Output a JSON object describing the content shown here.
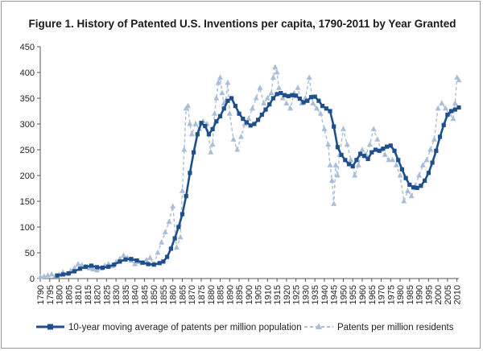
{
  "chart_data": {
    "type": "line",
    "title": "Figure 1. History of Patented U.S. Inventions per capita, 1790-2011 by Year Granted",
    "xlabel": "",
    "ylabel": "",
    "xlim": [
      1790,
      2011
    ],
    "ylim": [
      0,
      450
    ],
    "y_ticks": [
      0,
      50,
      100,
      150,
      200,
      250,
      300,
      350,
      400,
      450
    ],
    "x_ticks": [
      1790,
      1795,
      1800,
      1805,
      1810,
      1815,
      1820,
      1825,
      1830,
      1835,
      1840,
      1845,
      1850,
      1855,
      1860,
      1865,
      1870,
      1875,
      1880,
      1885,
      1890,
      1895,
      1900,
      1905,
      1910,
      1915,
      1920,
      1925,
      1930,
      1935,
      1940,
      1945,
      1950,
      1955,
      1960,
      1965,
      1970,
      1975,
      1980,
      1985,
      1990,
      1995,
      2000,
      2005,
      2010
    ],
    "grid": false,
    "legend_position": "bottom",
    "series": [
      {
        "name": "10-year moving average of patents per million population",
        "color": "#1f4e8c",
        "marker": "square",
        "x": [
          1799,
          1802,
          1805,
          1808,
          1811,
          1814,
          1817,
          1820,
          1823,
          1826,
          1829,
          1832,
          1835,
          1838,
          1841,
          1844,
          1847,
          1850,
          1853,
          1855,
          1857,
          1859,
          1861,
          1863,
          1865,
          1867,
          1869,
          1871,
          1873,
          1875,
          1877,
          1879,
          1881,
          1883,
          1885,
          1887,
          1889,
          1891,
          1893,
          1895,
          1897,
          1899,
          1901,
          1903,
          1905,
          1907,
          1909,
          1911,
          1913,
          1915,
          1917,
          1919,
          1921,
          1923,
          1925,
          1927,
          1929,
          1931,
          1933,
          1935,
          1937,
          1939,
          1941,
          1943,
          1945,
          1947,
          1949,
          1951,
          1953,
          1955,
          1957,
          1959,
          1961,
          1963,
          1965,
          1967,
          1969,
          1971,
          1973,
          1975,
          1977,
          1979,
          1981,
          1983,
          1985,
          1987,
          1989,
          1991,
          1993,
          1995,
          1997,
          1999,
          2001,
          2003,
          2005,
          2007,
          2009,
          2011
        ],
        "values": [
          6,
          8,
          10,
          14,
          19,
          23,
          25,
          22,
          21,
          23,
          27,
          33,
          37,
          38,
          35,
          31,
          28,
          27,
          30,
          33,
          42,
          58,
          78,
          100,
          125,
          160,
          205,
          245,
          280,
          302,
          296,
          280,
          290,
          305,
          315,
          330,
          345,
          350,
          335,
          320,
          310,
          303,
          297,
          300,
          308,
          318,
          328,
          338,
          350,
          358,
          360,
          356,
          354,
          356,
          355,
          349,
          342,
          345,
          352,
          353,
          345,
          335,
          330,
          325,
          295,
          255,
          240,
          230,
          222,
          218,
          230,
          242,
          238,
          232,
          245,
          250,
          248,
          252,
          256,
          258,
          248,
          230,
          212,
          195,
          182,
          177,
          176,
          180,
          190,
          205,
          225,
          248,
          275,
          298,
          318,
          325,
          328,
          332
        ]
      },
      {
        "name": "Patents per million residents",
        "color": "#a9bdd6",
        "marker": "triangle",
        "x": [
          1790,
          1792,
          1794,
          1796,
          1798,
          1800,
          1802,
          1804,
          1806,
          1808,
          1810,
          1812,
          1814,
          1816,
          1818,
          1820,
          1822,
          1824,
          1826,
          1828,
          1830,
          1832,
          1834,
          1836,
          1838,
          1840,
          1842,
          1844,
          1846,
          1848,
          1850,
          1852,
          1854,
          1856,
          1858,
          1860,
          1862,
          1864,
          1865,
          1866,
          1867,
          1868,
          1869,
          1870,
          1872,
          1874,
          1876,
          1878,
          1880,
          1881,
          1882,
          1883,
          1884,
          1885,
          1886,
          1887,
          1888,
          1889,
          1890,
          1892,
          1894,
          1896,
          1898,
          1900,
          1902,
          1904,
          1906,
          1908,
          1910,
          1912,
          1913,
          1914,
          1915,
          1916,
          1918,
          1920,
          1922,
          1924,
          1926,
          1928,
          1930,
          1932,
          1934,
          1936,
          1938,
          1940,
          1942,
          1943,
          1944,
          1945,
          1946,
          1947,
          1948,
          1950,
          1952,
          1954,
          1956,
          1958,
          1960,
          1962,
          1964,
          1966,
          1968,
          1970,
          1972,
          1974,
          1976,
          1978,
          1980,
          1982,
          1984,
          1986,
          1988,
          1990,
          1992,
          1994,
          1996,
          1998,
          2000,
          2002,
          2004,
          2006,
          2008,
          2009,
          2010,
          2011
        ],
        "values": [
          3,
          4,
          6,
          8,
          5,
          7,
          12,
          9,
          15,
          20,
          28,
          26,
          22,
          20,
          18,
          16,
          20,
          25,
          28,
          24,
          32,
          38,
          45,
          40,
          35,
          28,
          32,
          30,
          36,
          40,
          28,
          50,
          70,
          90,
          110,
          140,
          60,
          80,
          170,
          250,
          330,
          335,
          300,
          280,
          300,
          290,
          305,
          300,
          245,
          260,
          320,
          350,
          380,
          390,
          360,
          340,
          345,
          380,
          320,
          270,
          250,
          275,
          300,
          310,
          330,
          350,
          370,
          340,
          350,
          360,
          390,
          410,
          400,
          370,
          350,
          340,
          330,
          360,
          370,
          340,
          350,
          390,
          340,
          330,
          320,
          290,
          260,
          220,
          190,
          145,
          220,
          200,
          240,
          290,
          260,
          230,
          200,
          220,
          250,
          240,
          260,
          290,
          270,
          250,
          240,
          230,
          230,
          220,
          200,
          150,
          170,
          160,
          180,
          200,
          220,
          230,
          250,
          270,
          330,
          340,
          330,
          320,
          310,
          340,
          390,
          385
        ]
      }
    ]
  }
}
